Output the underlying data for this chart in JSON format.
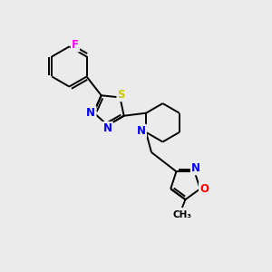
{
  "background_color": "#ebebeb",
  "bond_color": "#000000",
  "atom_colors": {
    "N": "#0000ff",
    "S": "#cccc00",
    "F": "#ff00ff",
    "O": "#ff0000",
    "C": "#000000"
  },
  "figsize": [
    3.0,
    3.0
  ],
  "dpi": 100
}
